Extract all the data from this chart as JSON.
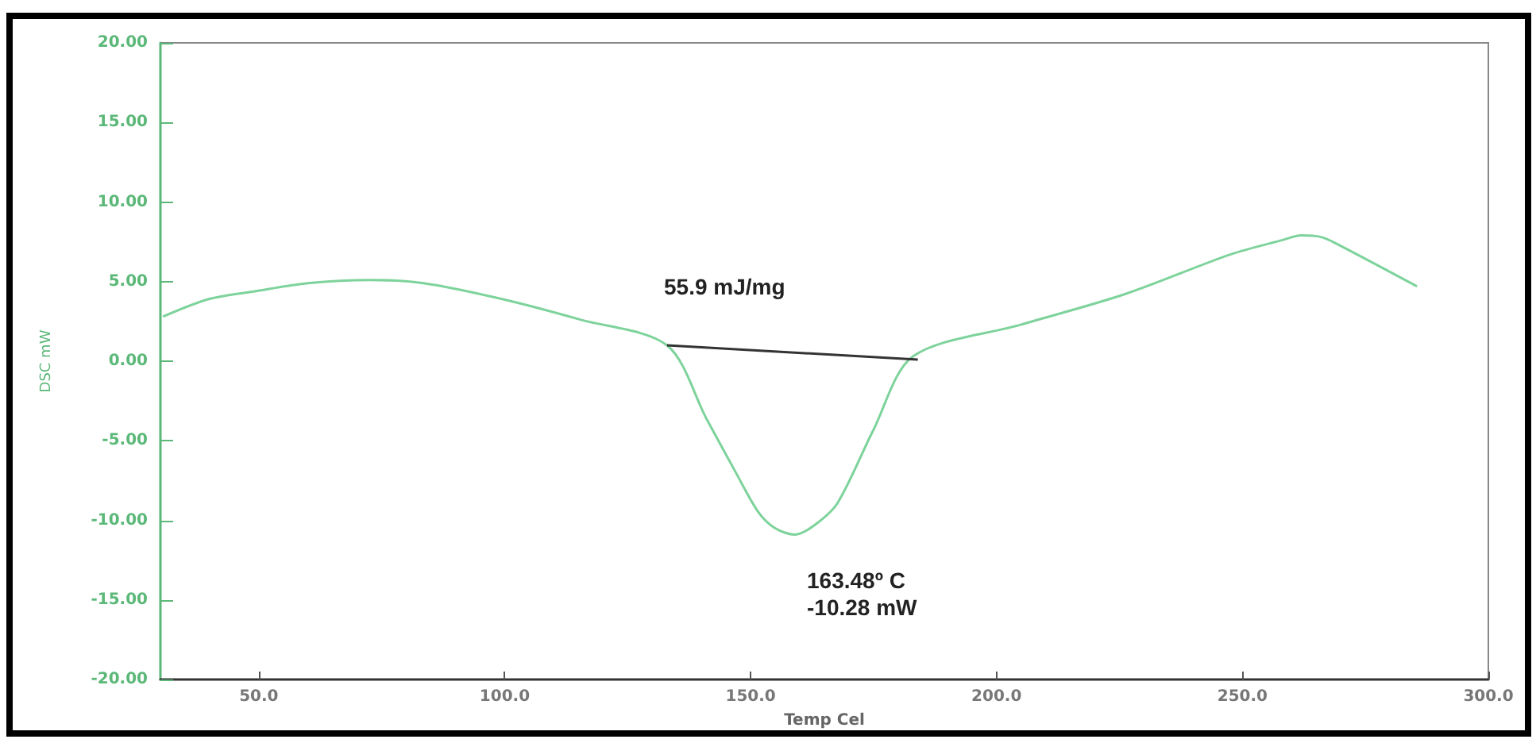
{
  "chart_data": {
    "type": "line",
    "xlabel": "Temp Cel",
    "ylabel": "DSC mW",
    "xlim": [
      30,
      300
    ],
    "ylim": [
      -20,
      20
    ],
    "xticks": [
      {
        "value": 50,
        "label": "50.0"
      },
      {
        "value": 100,
        "label": "100.0"
      },
      {
        "value": 150,
        "label": "150.0"
      },
      {
        "value": 200,
        "label": "200.0"
      },
      {
        "value": 250,
        "label": "250.0"
      },
      {
        "value": 300,
        "label": "300.0"
      }
    ],
    "yticks": [
      {
        "value": -20,
        "label": "-20.00"
      },
      {
        "value": -15,
        "label": "-15.00"
      },
      {
        "value": -10,
        "label": "-10.00"
      },
      {
        "value": -5,
        "label": "-5.00"
      },
      {
        "value": 0,
        "label": "0.00"
      },
      {
        "value": 5,
        "label": "5.00"
      },
      {
        "value": 10,
        "label": "10.00"
      },
      {
        "value": 15,
        "label": "15.00"
      },
      {
        "value": 20,
        "label": "20.00"
      }
    ],
    "grid": false,
    "marker": "none",
    "line_style": "solid",
    "series": [
      {
        "color": "#7dd39b",
        "x": [
          30.5,
          39.8,
          49.4,
          60,
          72.7,
          83.5,
          99.5,
          115.5,
          133,
          141,
          147,
          151.6,
          155,
          159,
          163,
          167.7,
          175,
          183,
          205,
          226,
          247.5,
          258,
          262,
          266,
          269,
          285.5
        ],
        "values": [
          2.8,
          3.9,
          4.4,
          4.9,
          5.1,
          4.9,
          3.9,
          2.6,
          1.0,
          -3.6,
          -7.0,
          -9.5,
          -10.5,
          -10.9,
          -10.3,
          -8.9,
          -4.3,
          0.3,
          2.3,
          4.2,
          6.7,
          7.6,
          7.9,
          7.8,
          7.4,
          4.7
        ]
      },
      {
        "color": "#333333",
        "x": [
          133,
          184
        ],
        "values": [
          1.0,
          0.1
        ]
      }
    ],
    "annotations": [
      "55.9 mJ/mg",
      "163.48º C\n-10.28 mW"
    ]
  }
}
